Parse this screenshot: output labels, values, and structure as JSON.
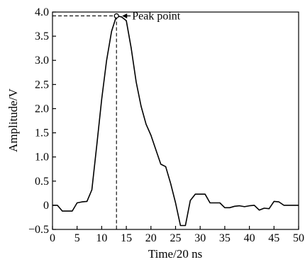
{
  "chart_data": {
    "type": "line",
    "title": "",
    "xlabel": "Time/20 ns",
    "ylabel": "Amplitude/V",
    "xlim": [
      0,
      50
    ],
    "ylim": [
      -0.5,
      4.0
    ],
    "xticks": [
      0,
      5,
      10,
      15,
      20,
      25,
      30,
      35,
      40,
      45,
      50
    ],
    "yticks": [
      -0.5,
      0,
      0.5,
      1.0,
      1.5,
      2.0,
      2.5,
      3.0,
      3.5,
      4.0
    ],
    "xtick_labels": [
      "0",
      "5",
      "10",
      "15",
      "20",
      "25",
      "30",
      "35",
      "40",
      "45",
      "50"
    ],
    "ytick_labels": [
      "−0.5",
      "0",
      "0.5",
      "1.0",
      "1.5",
      "2.0",
      "2.5",
      "3.0",
      "3.5",
      "4.0"
    ],
    "grid": false,
    "series": [
      {
        "x": [
          0,
          1,
          2,
          3,
          4,
          5,
          6,
          7,
          8,
          9,
          10,
          11,
          12,
          13,
          14,
          15,
          16,
          17,
          18,
          19,
          20,
          21,
          22,
          23,
          24,
          25,
          26,
          27,
          28,
          29,
          30,
          31,
          32,
          33,
          34,
          35,
          36,
          37,
          38,
          39,
          40,
          41,
          42,
          43,
          44,
          45,
          46,
          47,
          48,
          49,
          50
        ],
        "y": [
          0.0,
          0.0,
          -0.12,
          -0.12,
          -0.12,
          0.05,
          0.07,
          0.08,
          0.32,
          1.25,
          2.2,
          3.0,
          3.6,
          3.92,
          3.9,
          3.82,
          3.25,
          2.55,
          2.05,
          1.68,
          1.45,
          1.15,
          0.85,
          0.8,
          0.45,
          0.05,
          -0.42,
          -0.42,
          0.1,
          0.23,
          0.23,
          0.23,
          0.05,
          0.05,
          0.05,
          -0.05,
          -0.05,
          -0.02,
          -0.01,
          -0.03,
          -0.01,
          0.0,
          -0.1,
          -0.06,
          -0.07,
          0.08,
          0.07,
          0.0,
          0.0,
          0.0,
          0.0
        ],
        "color": "#000000"
      }
    ],
    "annotations": [
      {
        "text": "Peak point",
        "x": 13,
        "y": 3.92
      }
    ]
  }
}
